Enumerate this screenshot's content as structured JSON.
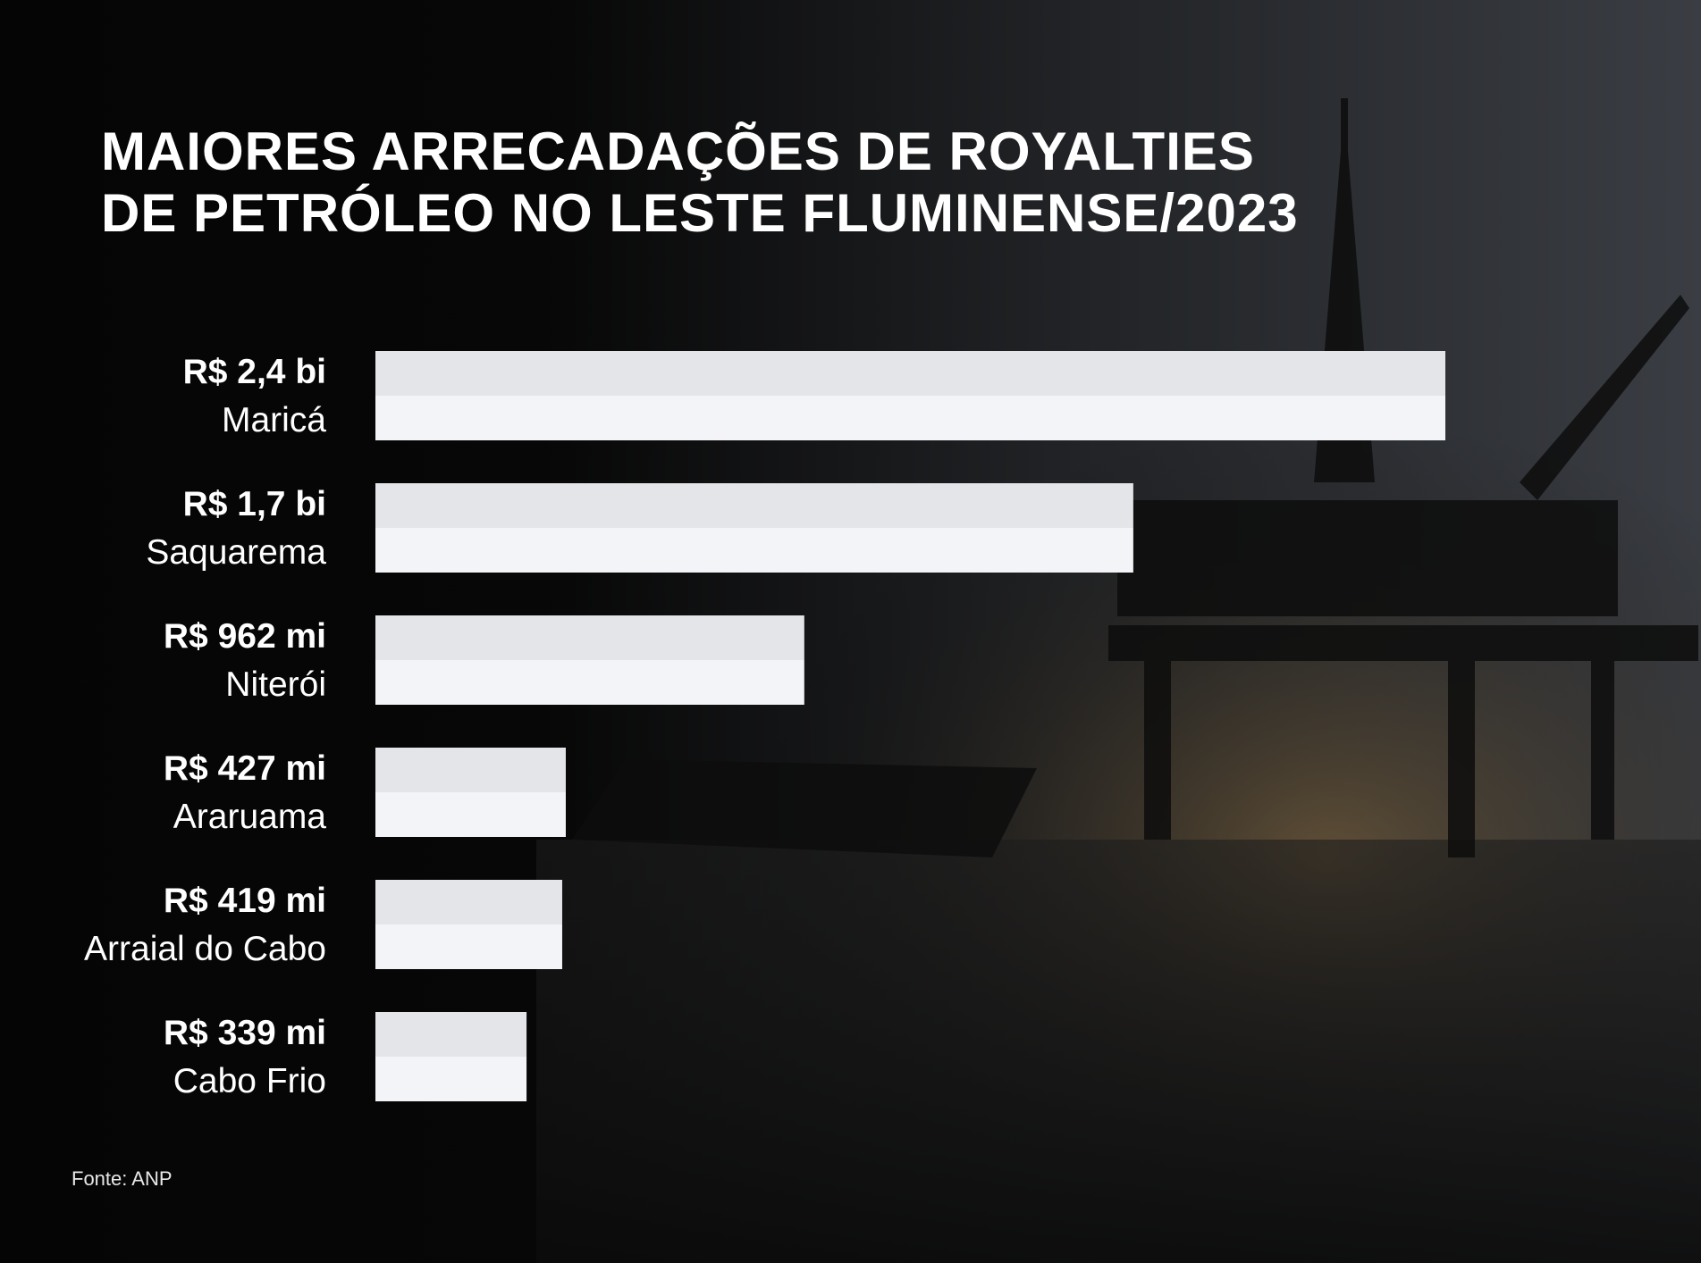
{
  "title_lines": [
    "MAIORES ARRECADAÇÕES DE ROYALTIES",
    "DE PETRÓLEO NO LESTE FLUMINENSE/2023"
  ],
  "source": "Fonte: ANP",
  "colors": {
    "background": "#050505",
    "bar_top": "#e3e5e8",
    "bar_bottom": "#f3f4f7",
    "text": "#ffffff"
  },
  "chart_data": {
    "type": "bar",
    "orientation": "horizontal",
    "title": "MAIORES ARRECADAÇÕES DE ROYALTIES DE PETRÓLEO NO LESTE FLUMINENSE/2023",
    "categories": [
      "Maricá",
      "Saquarema",
      "Niterói",
      "Araruama",
      "Arraial do Cabo",
      "Cabo Frio"
    ],
    "values": [
      2400,
      1700,
      962,
      427,
      419,
      339
    ],
    "value_unit": "R$ mi",
    "data_labels": [
      "R$ 2,4 bi",
      "R$ 1,7 bi",
      "R$ 962 mi",
      "R$ 427 mi",
      "R$ 419 mi",
      "R$ 339 mi"
    ],
    "xlim": [
      0,
      2400
    ],
    "grid": false,
    "legend": "none"
  }
}
